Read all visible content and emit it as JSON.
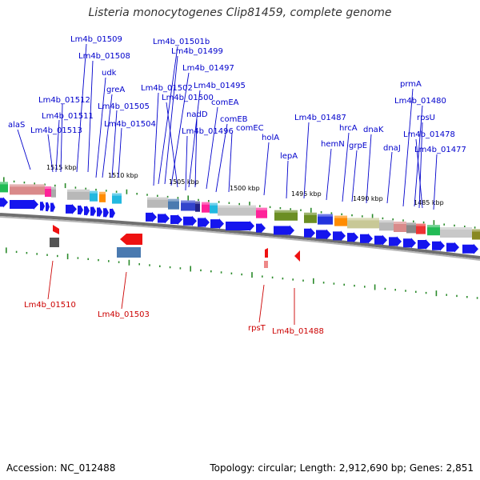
{
  "title": "Listeria monocytogenes Clip81459, complete genome",
  "footer": {
    "accession": "Accession: NC_012488",
    "topology": "Topology: circular; Length: 2,912,690 bp; Genes: 2,851"
  },
  "colors": {
    "forward_label": "#0000cc",
    "reverse_label": "#cc0000",
    "tick": "#228822",
    "backbone": "#888888"
  },
  "forward_genes": [
    "alaS",
    "Lm4b_01513",
    "Lm4b_01511",
    "Lm4b_01512",
    "Lm4b_01509",
    "Lm4b_01508",
    "udk",
    "greA",
    "Lm4b_01505",
    "Lm4b_01504",
    "Lm4b_01501b",
    "Lm4b_01499",
    "Lm4b_01497",
    "Lm4b_01502",
    "Lm4b_01495",
    "Lm4b_01500",
    "nadD",
    "comEA",
    "Lm4b_01496",
    "comEB",
    "comEC",
    "holA",
    "lepA",
    "Lm4b_01487",
    "hemN",
    "hrcA",
    "grpE",
    "dnaK",
    "dnaJ",
    "prmA",
    "Lm4b_01480",
    "rpsU",
    "Lm4b_01478",
    "Lm4b_01477"
  ],
  "reverse_genes": [
    "Lm4b_01510",
    "Lm4b_01503",
    "rpsT",
    "Lm4b_01488"
  ],
  "scale_labels": [
    "1515 kbp",
    "1510 kbp",
    "1505 kbp",
    "1500 kbp",
    "1495 kbp",
    "1490 kbp",
    "1485 kbp"
  ]
}
